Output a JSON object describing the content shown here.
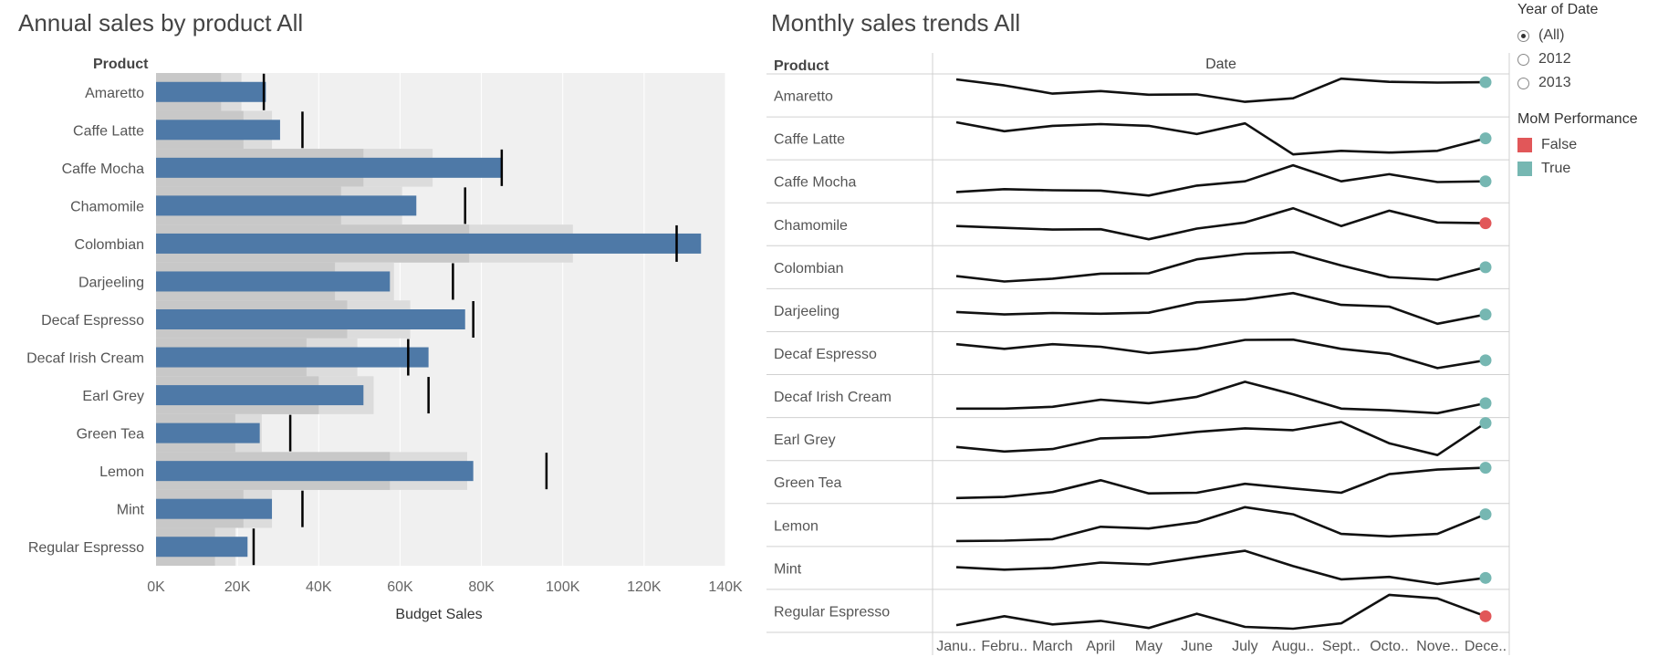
{
  "titles": {
    "bullet": "Annual sales by product All",
    "spark": "Monthly sales trends All"
  },
  "colors": {
    "bar": "#4e79a7",
    "band_dark": "#c8c8c8",
    "band_light": "#dcdcdc",
    "background": "#f0f0f0",
    "true": "#76b7b2",
    "false": "#e15759",
    "line": "#111111"
  },
  "legend": {
    "year_title": "Year of Date",
    "year_options": [
      {
        "label": "(All)",
        "selected": true
      },
      {
        "label": "2012",
        "selected": false
      },
      {
        "label": "2013",
        "selected": false
      }
    ],
    "mom_title": "MoM Performance",
    "mom_items": [
      {
        "label": "False",
        "color": "#e15759"
      },
      {
        "label": "True",
        "color": "#76b7b2"
      }
    ]
  },
  "chart_data": [
    {
      "type": "bar",
      "subtype": "bullet",
      "title": "Annual sales by product All",
      "row_header": "Product",
      "xlabel": "Budget Sales",
      "xlim": [
        0,
        140000
      ],
      "x_ticks": [
        "0K",
        "20K",
        "40K",
        "60K",
        "80K",
        "100K",
        "120K",
        "140K"
      ],
      "categories": [
        "Amaretto",
        "Caffe Latte",
        "Caffe Mocha",
        "Chamomile",
        "Colombian",
        "Darjeeling",
        "Decaf Espresso",
        "Decaf Irish Cream",
        "Earl Grey",
        "Green Tea",
        "Lemon",
        "Mint",
        "Regular Espresso"
      ],
      "series": [
        {
          "role": "actual",
          "values": [
            27000,
            30500,
            85000,
            64000,
            134000,
            57500,
            76000,
            67000,
            51000,
            25500,
            78000,
            28500,
            22500
          ]
        },
        {
          "role": "target",
          "values": [
            26500,
            36000,
            85000,
            76000,
            128000,
            73000,
            78000,
            62000,
            67000,
            33000,
            96000,
            36000,
            24000
          ]
        },
        {
          "role": "band_60pct",
          "values": [
            16000,
            21500,
            51000,
            45500,
            77000,
            44000,
            47000,
            37000,
            40000,
            19500,
            57500,
            21500,
            14500
          ]
        },
        {
          "role": "band_80pct",
          "values": [
            21000,
            28500,
            68000,
            60500,
            102500,
            58500,
            62500,
            49500,
            53500,
            26000,
            76500,
            28500,
            19500
          ]
        }
      ]
    },
    {
      "type": "line",
      "title": "Monthly sales trends All",
      "row_header": "Product",
      "column_header": "Date",
      "x": [
        "Janu..",
        "Febru..",
        "March",
        "April",
        "May",
        "June",
        "July",
        "Augu..",
        "Sept..",
        "Octo..",
        "Nove..",
        "Dece.."
      ],
      "series": [
        {
          "name": "Amaretto",
          "values": [
            0.95,
            0.78,
            0.55,
            0.62,
            0.52,
            0.53,
            0.32,
            0.42,
            0.97,
            0.88,
            0.86,
            0.87
          ],
          "mom": "True"
        },
        {
          "name": "Caffe Latte",
          "values": [
            0.95,
            0.7,
            0.85,
            0.9,
            0.85,
            0.62,
            0.92,
            0.05,
            0.15,
            0.1,
            0.15,
            0.5
          ],
          "mom": "True"
        },
        {
          "name": "Caffe Mocha",
          "values": [
            0.2,
            0.28,
            0.25,
            0.24,
            0.1,
            0.38,
            0.5,
            0.95,
            0.5,
            0.7,
            0.48,
            0.5
          ],
          "mom": "True"
        },
        {
          "name": "Chamomile",
          "values": [
            0.45,
            0.4,
            0.35,
            0.36,
            0.08,
            0.38,
            0.55,
            0.95,
            0.45,
            0.88,
            0.55,
            0.53
          ],
          "mom": "False"
        },
        {
          "name": "Colombian",
          "values": [
            0.25,
            0.1,
            0.18,
            0.32,
            0.33,
            0.72,
            0.88,
            0.92,
            0.55,
            0.22,
            0.15,
            0.5
          ],
          "mom": "True"
        },
        {
          "name": "Darjeeling",
          "values": [
            0.45,
            0.38,
            0.42,
            0.4,
            0.43,
            0.72,
            0.8,
            0.98,
            0.65,
            0.6,
            0.12,
            0.38
          ],
          "mom": "True"
        },
        {
          "name": "Decaf Espresso",
          "values": [
            0.75,
            0.62,
            0.75,
            0.68,
            0.5,
            0.62,
            0.87,
            0.88,
            0.62,
            0.48,
            0.08,
            0.3
          ],
          "mom": "True"
        },
        {
          "name": "Decaf Irish Cream",
          "values": [
            0.15,
            0.15,
            0.2,
            0.4,
            0.3,
            0.48,
            0.9,
            0.55,
            0.15,
            0.1,
            0.02,
            0.3
          ],
          "mom": "True"
        },
        {
          "name": "Earl Grey",
          "values": [
            0.28,
            0.15,
            0.22,
            0.52,
            0.55,
            0.7,
            0.8,
            0.75,
            0.98,
            0.38,
            0.05,
            0.95
          ],
          "mom": "True"
        },
        {
          "name": "Green Tea",
          "values": [
            0.05,
            0.08,
            0.22,
            0.55,
            0.18,
            0.2,
            0.45,
            0.32,
            0.2,
            0.72,
            0.85,
            0.9
          ],
          "mom": "True"
        },
        {
          "name": "Lemon",
          "values": [
            0.05,
            0.06,
            0.1,
            0.45,
            0.4,
            0.58,
            1.0,
            0.8,
            0.25,
            0.18,
            0.25,
            0.8
          ],
          "mom": "True"
        },
        {
          "name": "Mint",
          "values": [
            0.52,
            0.45,
            0.5,
            0.65,
            0.6,
            0.8,
            0.98,
            0.55,
            0.18,
            0.25,
            0.05,
            0.22
          ],
          "mom": "True"
        },
        {
          "name": "Regular Espresso",
          "values": [
            0.1,
            0.35,
            0.12,
            0.22,
            0.02,
            0.42,
            0.05,
            0.0,
            0.15,
            0.95,
            0.85,
            0.35
          ],
          "mom": "False"
        }
      ]
    }
  ]
}
